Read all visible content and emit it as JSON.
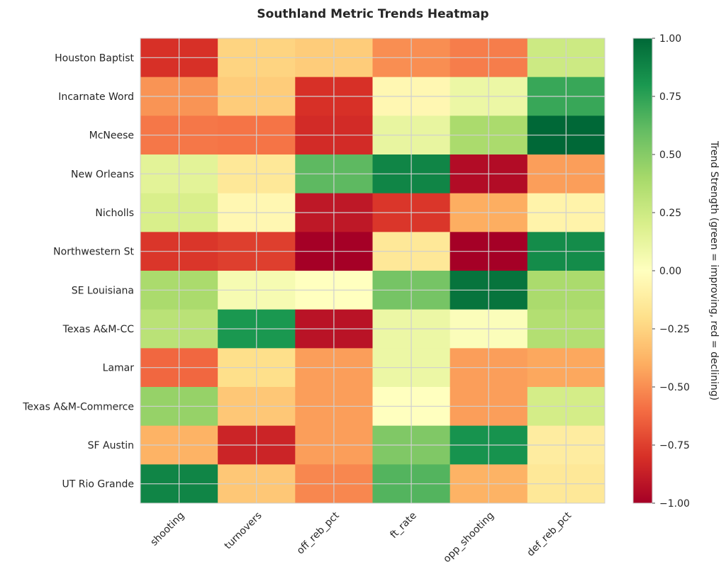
{
  "chart_data": {
    "type": "heatmap",
    "title": "Southland Metric Trends Heatmap",
    "xlabel": "",
    "ylabel": "",
    "colormap": "RdYlGn",
    "vmin": -1.0,
    "vmax": 1.0,
    "grid": true,
    "columns": [
      "shooting",
      "turnovers",
      "off_reb_pct",
      "ft_rate",
      "opp_shooting",
      "def_reb_pct"
    ],
    "rows": [
      "Houston Baptist",
      "Incarnate Word",
      "McNeese",
      "New Orleans",
      "Nicholls",
      "Northwestern St",
      "SE Louisiana",
      "Texas A&M-CC",
      "Lamar",
      "Texas A&M-Commerce",
      "SF Austin",
      "UT Rio Grande"
    ],
    "values": [
      [
        -0.8,
        -0.25,
        -0.28,
        -0.5,
        -0.55,
        0.25
      ],
      [
        -0.48,
        -0.28,
        -0.8,
        -0.05,
        0.1,
        0.72
      ],
      [
        -0.57,
        -0.58,
        -0.82,
        0.12,
        0.38,
        1.0
      ],
      [
        0.15,
        -0.15,
        0.62,
        0.88,
        -0.95,
        -0.45
      ],
      [
        0.2,
        -0.05,
        -0.9,
        -0.78,
        -0.4,
        -0.08
      ],
      [
        -0.78,
        -0.75,
        -1.0,
        -0.15,
        -1.0,
        0.85
      ],
      [
        0.38,
        0.05,
        0.0,
        0.55,
        0.95,
        0.38
      ],
      [
        0.32,
        0.8,
        -0.92,
        0.1,
        0.02,
        0.35
      ],
      [
        -0.62,
        -0.2,
        -0.45,
        0.1,
        -0.45,
        -0.42
      ],
      [
        0.45,
        -0.3,
        -0.45,
        0.0,
        -0.45,
        0.22
      ],
      [
        -0.38,
        -0.85,
        -0.45,
        0.52,
        0.82,
        -0.12
      ],
      [
        0.88,
        -0.3,
        -0.52,
        0.65,
        -0.38,
        -0.15
      ]
    ],
    "colorbar": {
      "label": "Trend Strength (green = improving, red = declining)",
      "ticks": [
        1.0,
        0.75,
        0.5,
        0.25,
        0.0,
        -0.25,
        -0.5,
        -0.75,
        -1.0
      ],
      "tick_labels": [
        "1.00",
        "0.75",
        "0.50",
        "0.25",
        "0.00",
        "−0.25",
        "−0.50",
        "−0.75",
        "−1.00"
      ]
    }
  }
}
